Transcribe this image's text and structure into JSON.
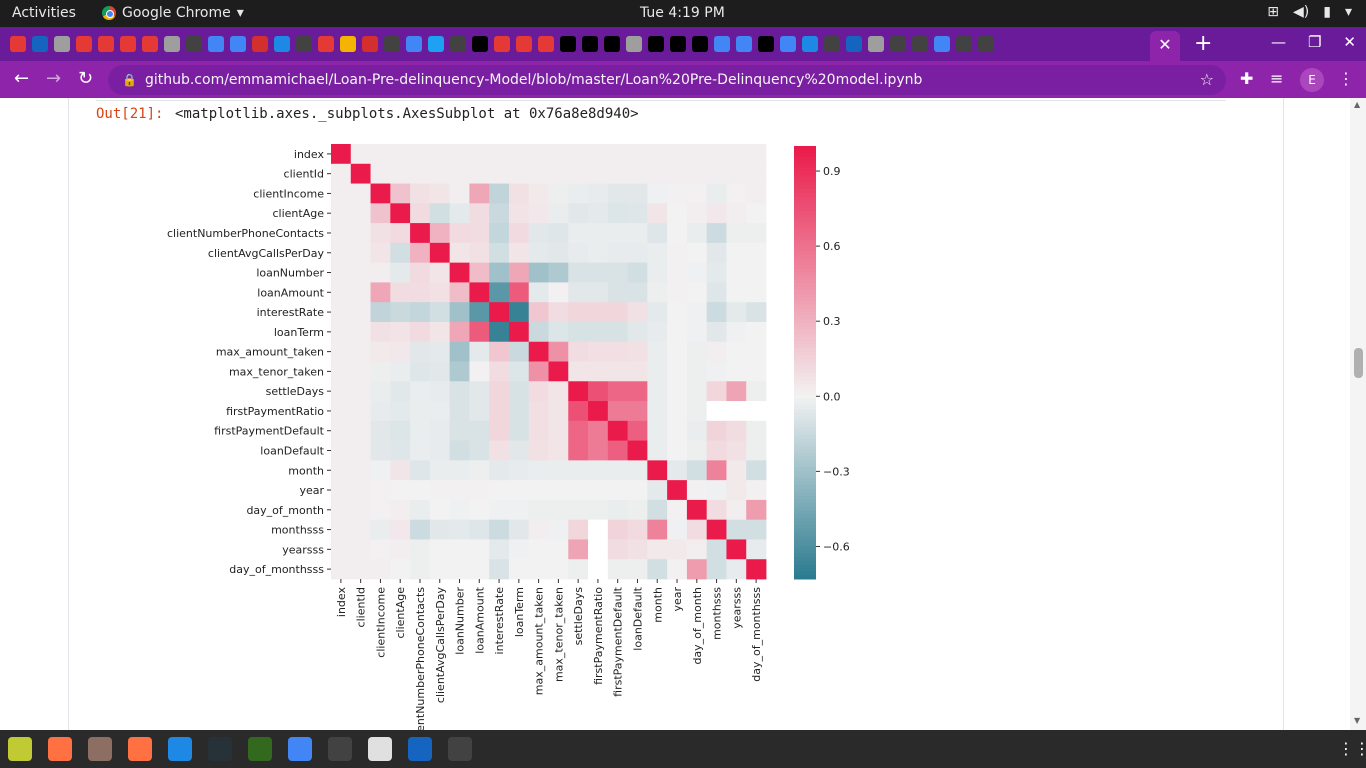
{
  "topbar": {
    "activities": "Activities",
    "app_name": "Google Chrome",
    "clock": "Tue  4:19 PM"
  },
  "browser": {
    "url": "github.com/emmamichael/Loan-Pre-delinquency-Model/blob/master/Loan%20Pre-Delinquency%20model.ipynb",
    "profile_initial": "E"
  },
  "notebook": {
    "out_prompt": "Out[21]:",
    "out_text": "<matplotlib.axes._subplots.AxesSubplot at 0x76a8e8d940>"
  },
  "chart_data": {
    "type": "heatmap",
    "variables": [
      "index",
      "clientId",
      "clientIncome",
      "clientAge",
      "clientNumberPhoneContacts",
      "clientAvgCallsPerDay",
      "loanNumber",
      "loanAmount",
      "interestRate",
      "loanTerm",
      "max_amount_taken",
      "max_tenor_taken",
      "settleDays",
      "firstPaymentRatio",
      "firstPaymentDefault",
      "loanDefault",
      "month",
      "year",
      "day_of_month",
      "monthsss",
      "yearsss",
      "day_of_monthsss"
    ],
    "colorbar_ticks": [
      0.9,
      0.6,
      0.3,
      0.0,
      -0.3,
      -0.6
    ],
    "colorbar_tick_labels": [
      "0.9",
      "0.6",
      "0.3",
      "0.0",
      "−0.3",
      "−0.6"
    ],
    "vmin": -0.73,
    "vmax": 1.0,
    "colormap": "diverging teal-white-crimson",
    "colors": {
      "low": "#2a7a8f",
      "mid": "#f2f2f2",
      "high": "#ea1a4a"
    },
    "missing": [
      [
        13,
        19
      ],
      [
        13,
        20
      ],
      [
        13,
        21
      ],
      [
        19,
        13
      ],
      [
        20,
        13
      ],
      [
        21,
        13
      ]
    ],
    "values": [
      [
        1,
        0.02,
        0.02,
        0.02,
        0.02,
        0.02,
        0.02,
        0.02,
        0.02,
        0.02,
        0.02,
        0.02,
        0.02,
        0.02,
        0.02,
        0.02,
        0.02,
        0.02,
        0.02,
        0.02,
        0.02,
        0.02
      ],
      [
        0.02,
        1,
        0.02,
        0.02,
        0.02,
        0.02,
        0.02,
        0.02,
        0.02,
        0.02,
        0.02,
        0.02,
        0.02,
        0.02,
        0.02,
        0.02,
        0.02,
        0.02,
        0.02,
        0.02,
        0.02,
        0.02
      ],
      [
        0.02,
        0.02,
        1,
        0.22,
        0.08,
        0.06,
        0.02,
        0.35,
        -0.18,
        0.08,
        0.04,
        -0.02,
        -0.03,
        -0.04,
        -0.06,
        -0.06,
        -0.01,
        0.01,
        0.01,
        -0.03,
        0.01,
        0.02
      ],
      [
        0.02,
        0.02,
        0.22,
        1,
        0.11,
        -0.12,
        -0.05,
        0.1,
        -0.15,
        0.07,
        0.05,
        -0.03,
        -0.06,
        -0.05,
        -0.08,
        -0.07,
        0.06,
        0,
        0.02,
        0.05,
        0.02,
        0
      ],
      [
        0.02,
        0.02,
        0.08,
        0.11,
        1,
        0.3,
        0.11,
        0.1,
        -0.17,
        0.11,
        -0.06,
        -0.07,
        -0.03,
        -0.03,
        -0.03,
        -0.03,
        -0.07,
        0,
        -0.03,
        -0.14,
        -0.02,
        -0.02
      ],
      [
        0.02,
        0.02,
        0.06,
        -0.12,
        0.3,
        1,
        0.06,
        0.08,
        -0.12,
        0.06,
        -0.05,
        -0.06,
        -0.04,
        -0.03,
        -0.04,
        -0.04,
        -0.03,
        0.01,
        0,
        -0.06,
        0,
        0
      ],
      [
        0.02,
        0.02,
        0.02,
        -0.05,
        0.11,
        0.06,
        1,
        0.25,
        -0.3,
        0.35,
        -0.3,
        -0.25,
        -0.09,
        -0.09,
        -0.09,
        -0.12,
        -0.03,
        0.01,
        -0.01,
        -0.05,
        0,
        0
      ],
      [
        0.02,
        0.02,
        0.35,
        0.1,
        0.1,
        0.08,
        0.25,
        1,
        -0.55,
        0.7,
        -0.05,
        0.01,
        -0.06,
        -0.06,
        -0.09,
        -0.09,
        -0.02,
        0.01,
        0,
        -0.07,
        0,
        0
      ],
      [
        0.02,
        0.02,
        -0.18,
        -0.15,
        -0.17,
        -0.12,
        -0.3,
        -0.55,
        1,
        -0.68,
        0.2,
        0.1,
        0.13,
        0.13,
        0.13,
        0.08,
        -0.05,
        0,
        -0.01,
        -0.14,
        -0.05,
        -0.09
      ],
      [
        0.02,
        0.02,
        0.08,
        0.07,
        0.11,
        0.06,
        0.35,
        0.7,
        -0.68,
        1,
        -0.15,
        -0.08,
        -0.1,
        -0.1,
        -0.1,
        -0.06,
        -0.04,
        0,
        -0.01,
        -0.06,
        -0.01,
        0
      ],
      [
        0.02,
        0.02,
        0.04,
        0.05,
        -0.06,
        -0.05,
        -0.3,
        -0.05,
        0.2,
        -0.15,
        1,
        0.45,
        0.1,
        0.09,
        0.09,
        0.08,
        -0.03,
        0,
        -0.02,
        0.02,
        0,
        0
      ],
      [
        0.02,
        0.02,
        -0.02,
        -0.03,
        -0.07,
        -0.06,
        -0.25,
        0.01,
        0.1,
        -0.08,
        0.45,
        1,
        0.06,
        0.06,
        0.06,
        0.06,
        -0.03,
        0,
        -0.02,
        -0.01,
        0,
        0
      ],
      [
        0.02,
        0.02,
        -0.03,
        -0.06,
        -0.03,
        -0.04,
        -0.09,
        -0.06,
        0.13,
        -0.1,
        0.1,
        0.06,
        1,
        0.75,
        0.65,
        0.65,
        -0.03,
        0,
        -0.02,
        0.13,
        0.36,
        -0.02
      ],
      [
        0.02,
        0.02,
        -0.04,
        -0.05,
        -0.03,
        -0.03,
        -0.09,
        -0.06,
        0.13,
        -0.1,
        0.09,
        0.06,
        0.75,
        1,
        0.55,
        0.55,
        -0.03,
        0,
        -0.02,
        0,
        0,
        0
      ],
      [
        0.02,
        0.02,
        -0.06,
        -0.08,
        -0.03,
        -0.04,
        -0.09,
        -0.09,
        0.13,
        -0.1,
        0.09,
        0.06,
        0.65,
        0.55,
        1,
        0.68,
        -0.03,
        0,
        -0.03,
        0.14,
        0.1,
        -0.02
      ],
      [
        0.02,
        0.02,
        -0.06,
        -0.07,
        -0.03,
        -0.04,
        -0.12,
        -0.09,
        0.08,
        -0.06,
        0.08,
        0.06,
        0.65,
        0.55,
        0.68,
        1,
        -0.03,
        0,
        -0.02,
        0.11,
        0.08,
        -0.02
      ],
      [
        0.02,
        0.02,
        -0.01,
        0.06,
        -0.07,
        -0.03,
        -0.03,
        -0.02,
        -0.05,
        -0.04,
        -0.03,
        -0.03,
        -0.03,
        -0.03,
        -0.03,
        -0.03,
        1,
        -0.05,
        -0.12,
        0.52,
        0.04,
        -0.12
      ],
      [
        0.02,
        0.02,
        0.01,
        0,
        0,
        0.01,
        0.01,
        0.01,
        0,
        0,
        0,
        0,
        0,
        0,
        0,
        0,
        -0.05,
        1,
        0.01,
        -0.01,
        0.04,
        0.01
      ],
      [
        0.02,
        0.02,
        0.01,
        0.02,
        -0.03,
        0,
        -0.01,
        0,
        -0.01,
        -0.01,
        -0.02,
        -0.02,
        -0.02,
        -0.02,
        -0.03,
        -0.02,
        -0.12,
        0.01,
        1,
        0.1,
        0.02,
        0.4
      ],
      [
        0.02,
        0.02,
        -0.03,
        0.05,
        -0.14,
        -0.06,
        -0.05,
        -0.07,
        -0.14,
        -0.06,
        0.02,
        -0.01,
        0.13,
        0,
        0.14,
        0.11,
        0.52,
        -0.01,
        0.1,
        1,
        -0.12,
        -0.12
      ],
      [
        0.02,
        0.02,
        0.01,
        0.02,
        -0.02,
        0,
        0,
        0,
        -0.05,
        -0.01,
        0,
        0,
        0.36,
        0,
        0.1,
        0.08,
        0.04,
        0.04,
        0.02,
        -0.12,
        1,
        -0.04
      ],
      [
        0.02,
        0.02,
        0.02,
        0,
        -0.02,
        0,
        0,
        0,
        -0.09,
        0,
        0,
        0,
        -0.02,
        0,
        -0.02,
        -0.02,
        -0.12,
        0.01,
        0.4,
        -0.12,
        -0.04,
        1
      ]
    ],
    "grid": false,
    "legend": "colorbar right"
  }
}
